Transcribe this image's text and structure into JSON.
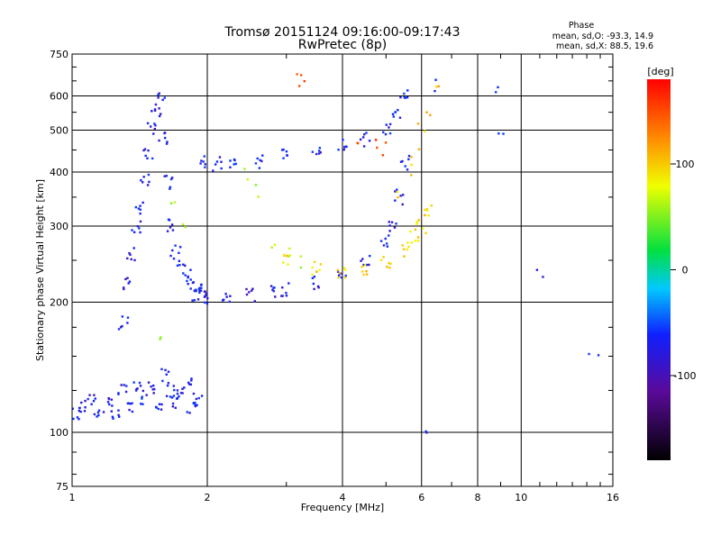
{
  "chart_data": {
    "type": "scatter",
    "title": "Tromsø 20151124 09:16:00-09:17:43",
    "subtitle": "RwPretec (8p)",
    "xlabel": "Frequency [MHz]",
    "ylabel": "Stationary phase Virtual Height [km]",
    "x_scale": "log",
    "y_scale": "log",
    "xlim": [
      1,
      16
    ],
    "ylim": [
      75,
      750
    ],
    "x_ticks": [
      1,
      2,
      4,
      6,
      8,
      10,
      16
    ],
    "y_ticks": [
      75,
      100,
      200,
      300,
      400,
      500,
      600,
      750
    ],
    "grid": true,
    "stats": {
      "heading": "Phase",
      "line_o": "mean, sd,O:  -93.3, 14.9",
      "line_x": "mean, sd,X:  88.5, 19.6"
    },
    "colorbar": {
      "label": "[deg]",
      "ticks": [
        100,
        0,
        -100
      ],
      "range": [
        -180,
        180
      ]
    },
    "traces": [
      {
        "x": [
          1.02,
          1.05,
          1.1,
          1.15,
          1.2,
          1.25,
          1.3,
          1.35,
          1.4,
          1.45,
          1.5,
          1.55,
          1.6,
          1.65,
          1.7,
          1.75,
          1.8,
          1.85,
          1.9
        ],
        "y": [
          110,
          115,
          120,
          112,
          118,
          108,
          125,
          115,
          130,
          120,
          128,
          115,
          135,
          125,
          118,
          122,
          130,
          115,
          120
        ],
        "phase": -95
      },
      {
        "x": [
          1.3,
          1.33,
          1.36,
          1.39,
          1.42,
          1.45,
          1.48,
          1.51,
          1.54,
          1.57,
          1.6,
          1.63,
          1.66,
          1.7,
          1.75,
          1.8,
          1.85,
          1.9,
          1.95
        ],
        "y": [
          180,
          220,
          260,
          300,
          330,
          380,
          440,
          500,
          560,
          590,
          480,
          380,
          300,
          260,
          240,
          230,
          220,
          215,
          210
        ],
        "phase": -95
      },
      {
        "x": [
          1.9,
          2.0,
          2.2,
          2.5,
          2.8,
          3.0,
          3.5,
          4.0,
          4.5,
          5.0,
          5.2,
          5.35,
          5.5
        ],
        "y": [
          210,
          206,
          206,
          208,
          212,
          215,
          222,
          232,
          250,
          275,
          300,
          350,
          420
        ],
        "phase": -95
      },
      {
        "x": [
          1.95,
          2.1,
          2.3,
          2.6,
          3.0,
          3.5,
          4.0,
          4.5,
          5.0,
          5.3,
          5.5
        ],
        "y": [
          420,
          418,
          420,
          425,
          435,
          450,
          460,
          475,
          500,
          540,
          600
        ],
        "phase": -90
      },
      {
        "x": [
          3.0,
          3.5,
          4.0,
          4.5,
          5.0,
          5.5,
          5.8,
          6.0,
          6.2
        ],
        "y": [
          248,
          240,
          235,
          240,
          250,
          265,
          285,
          300,
          330
        ],
        "phase": 95
      },
      {
        "x": [
          5.4,
          5.6,
          5.8,
          6.0,
          6.2,
          6.4
        ],
        "y": [
          350,
          400,
          450,
          500,
          560,
          620
        ],
        "phase": 100
      },
      {
        "x": [
          3.2,
          3.3,
          4.3,
          4.8,
          5.0
        ],
        "y": [
          650,
          660,
          470,
          470,
          450
        ],
        "phase": 150
      },
      {
        "x": [
          1.6,
          1.7,
          1.8,
          2.4,
          2.6,
          2.8,
          3.0,
          3.2
        ],
        "y": [
          160,
          330,
          300,
          395,
          365,
          268,
          258,
          250
        ],
        "phase": 60
      },
      {
        "x": [
          8.8,
          9.0,
          11.0,
          14.5,
          6.2,
          6.5
        ],
        "y": [
          620,
          480,
          230,
          150,
          97,
          640
        ],
        "phase": -90
      }
    ]
  }
}
